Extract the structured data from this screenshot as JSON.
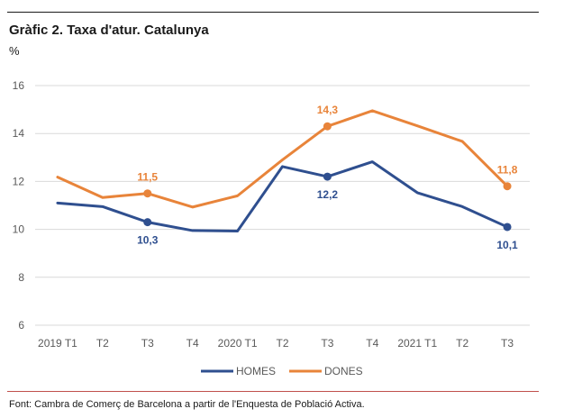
{
  "header": {
    "title": "Gràfic 2. Taxa d'atur. Catalunya",
    "unit": "%"
  },
  "footer": {
    "source": "Font: Cambra de Comerç de Barcelona a partir de l'Enquesta de Població Activa."
  },
  "chart_data": {
    "type": "line",
    "title": "Gràfic 2. Taxa d'atur. Catalunya",
    "ylabel": "%",
    "xlabel": "",
    "categories": [
      "2019 T1",
      "T2",
      "T3",
      "T4",
      "2020 T1",
      "T2",
      "T3",
      "T4",
      "2021 T1",
      "T2",
      "T3"
    ],
    "yticks": [
      "6",
      "8",
      "10",
      "12",
      "14",
      "16"
    ],
    "ylim": [
      6,
      16
    ],
    "grid": true,
    "legend_position": "bottom",
    "series": [
      {
        "name": "HOMES",
        "color": "#2f4f8f",
        "values": [
          11.1,
          10.95,
          10.3,
          9.95,
          9.93,
          12.62,
          12.2,
          12.82,
          11.53,
          10.95,
          10.1
        ]
      },
      {
        "name": "DONES",
        "color": "#e8843a",
        "values": [
          12.18,
          11.33,
          11.5,
          10.93,
          11.4,
          12.9,
          14.3,
          14.95,
          14.32,
          13.67,
          11.8
        ]
      }
    ],
    "data_labels": [
      {
        "series": 0,
        "index": 2,
        "text": "10,3",
        "position": "below"
      },
      {
        "series": 0,
        "index": 6,
        "text": "12,2",
        "position": "below"
      },
      {
        "series": 0,
        "index": 10,
        "text": "10,1",
        "position": "below"
      },
      {
        "series": 1,
        "index": 2,
        "text": "11,5",
        "position": "above"
      },
      {
        "series": 1,
        "index": 6,
        "text": "14,3",
        "position": "above"
      },
      {
        "series": 1,
        "index": 10,
        "text": "11,8",
        "position": "above"
      }
    ]
  }
}
